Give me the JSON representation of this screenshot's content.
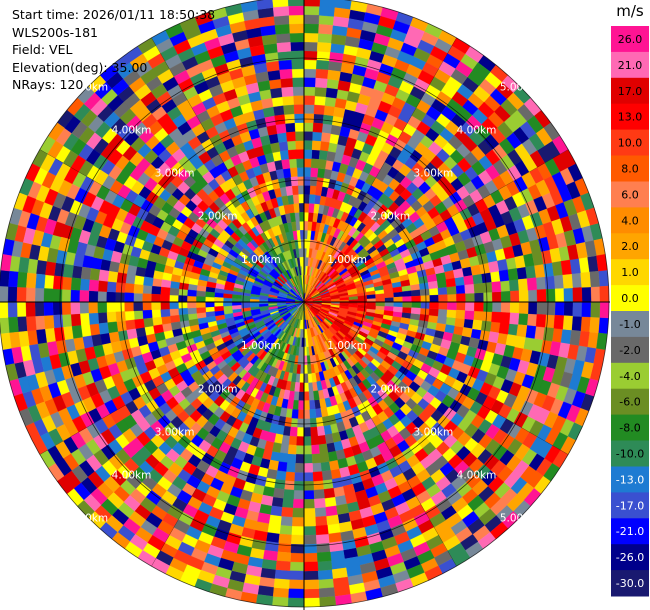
{
  "header": {
    "start_time": "Start time: 2026/01/11 18:50:38",
    "instrument": "WLS200s-181",
    "field": "Field: VEL",
    "elevation": "Elevation(deg): 35.00",
    "nrays": "NRays: 120"
  },
  "chart_data": {
    "type": "heatmap",
    "projection": "polar-ppi",
    "nrays": 120,
    "range_rings": [
      {
        "label": "1.00km",
        "km": 1.0
      },
      {
        "label": "2.00km",
        "km": 2.0
      },
      {
        "label": "3.00km",
        "km": 3.0
      },
      {
        "label": "4.00km",
        "km": 4.0
      },
      {
        "label": "5.00km",
        "km": 5.0
      }
    ],
    "colorbar": {
      "unit": "m/s",
      "ticks": [
        "26.0",
        "21.0",
        "17.0",
        "13.0",
        "10.0",
        "8.0",
        "6.0",
        "4.0",
        "2.0",
        "1.0",
        "0.0",
        "-1.0",
        "-2.0",
        "-4.0",
        "-6.0",
        "-8.0",
        "-10.0",
        "-13.0",
        "-17.0",
        "-21.0",
        "-26.0",
        "-30.0"
      ],
      "colors": [
        "#ff1493",
        "#ff69b4",
        "#e00000",
        "#ff0000",
        "#ff3a14",
        "#ff5a00",
        "#ff7f50",
        "#ff8c00",
        "#ffa500",
        "#ffd700",
        "#ffff00",
        "#778899",
        "#696969",
        "#9acd32",
        "#6b8e23",
        "#228b22",
        "#2e8b57",
        "#1e7bd2",
        "#3a50d0",
        "#0000ff",
        "#00008b",
        "#191970"
      ]
    },
    "pattern": "Near field: positive velocities (yellow/orange/red) to the east, negative velocities (green/blue) to the west; outer ranges show noisy speckle across all colors."
  }
}
